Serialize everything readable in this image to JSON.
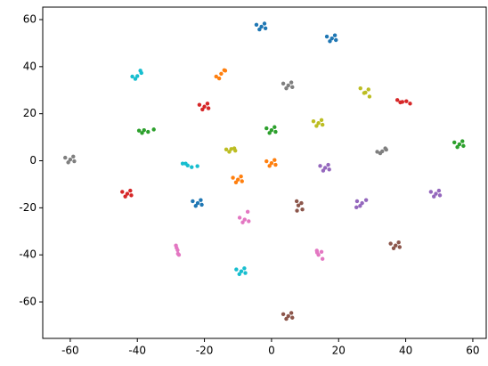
{
  "chart_data": {
    "type": "scatter",
    "xlim": [
      -68.2,
      64
    ],
    "ylim": [
      -75.5,
      65.3
    ],
    "xticks": [
      -60,
      -40,
      -20,
      0,
      20,
      40,
      60
    ],
    "yticks": [
      -60,
      -40,
      -20,
      0,
      20,
      40,
      60
    ],
    "series": [
      {
        "color": "#1f77b4",
        "x": [
          -4.5,
          -3,
          -1.8,
          -3.6,
          -2.1,
          16.5,
          18,
          19.2,
          17.4,
          18.9,
          -23.5,
          -22,
          -20.8,
          -22.6,
          -21.1
        ],
        "y": [
          57.8,
          57,
          56.3,
          55.8,
          58.3,
          52.8,
          52,
          51.3,
          50.8,
          53.3,
          -17.2,
          -18,
          -18.7,
          -19.2,
          -16.7
        ]
      },
      {
        "color": "#ff7f0e",
        "x": [
          -16.5,
          -15,
          -13.8,
          -15.6,
          -14.1,
          -1.5,
          0,
          1.2,
          -0.6,
          0.9,
          -11.5,
          -10,
          -8.8,
          -10.6,
          -9.1
        ],
        "y": [
          35.8,
          37,
          38.3,
          35,
          38.5,
          -0.2,
          -1,
          -1.7,
          -2.2,
          0.3,
          -7.2,
          -8,
          -8.7,
          -9.2,
          -6.7
        ]
      },
      {
        "color": "#2ca02c",
        "x": [
          -39.5,
          -38,
          -36.8,
          -38.6,
          -35.1,
          -1.5,
          0,
          1.2,
          -0.6,
          0.9,
          54.5,
          56,
          57.2,
          55.4,
          56.9
        ],
        "y": [
          12.8,
          13,
          12.3,
          11.8,
          13.3,
          13.8,
          13,
          12.3,
          11.8,
          14.3,
          7.8,
          7,
          6.3,
          5.8,
          8.3
        ]
      },
      {
        "color": "#d62728",
        "x": [
          -21.5,
          -20,
          -18.8,
          -20.6,
          -19.1,
          37.5,
          39,
          40.2,
          38.4,
          41.3,
          -44.5,
          -43,
          -41.8,
          -43.6,
          -42.1
        ],
        "y": [
          23.8,
          23,
          22.3,
          21.8,
          24.3,
          25.8,
          25,
          25.3,
          24.8,
          24.3,
          -13.2,
          -14,
          -14.7,
          -15.2,
          -12.7
        ]
      },
      {
        "color": "#9467bd",
        "x": [
          14.5,
          16,
          17.2,
          15.4,
          16.9,
          25.5,
          27,
          28.2,
          26.4,
          25.3,
          47.5,
          49,
          50.2,
          48.4,
          49.9
        ],
        "y": [
          -2.2,
          -3,
          -3.7,
          -4.2,
          -1.7,
          -17.2,
          -18,
          -16.7,
          -19.2,
          -19.8,
          -13.2,
          -14,
          -14.7,
          -15.2,
          -12.7
        ]
      },
      {
        "color": "#8c564b",
        "x": [
          7.5,
          8,
          9.2,
          7.6,
          8.9,
          35.5,
          37,
          38.2,
          36.4,
          37.9,
          3.5,
          5,
          6.2,
          4.4,
          5.9
        ],
        "y": [
          -17.2,
          -19,
          -20.7,
          -21.2,
          -18,
          -35.2,
          -36,
          -36.7,
          -37.2,
          -34.7,
          -65.2,
          -66,
          -66.7,
          -67.2,
          -64.7
        ]
      },
      {
        "color": "#e377c2",
        "x": [
          -9.5,
          -8,
          -6.8,
          -8.6,
          -7.1,
          -28.5,
          -28,
          -27.6,
          -28.3,
          -27.9,
          13.5,
          14,
          15.2,
          13.6,
          14.9
        ],
        "y": [
          -24.2,
          -25,
          -25.7,
          -26.2,
          -21.7,
          -36,
          -38,
          -40,
          -37,
          -39.5,
          -38.2,
          -40,
          -41.7,
          -39,
          -38.7
        ]
      },
      {
        "color": "#7f7f7f",
        "x": [
          -61.5,
          -60,
          -58.8,
          -60.6,
          -59.1,
          3.5,
          5,
          6.2,
          4.4,
          5.9,
          31.5,
          33,
          34.2,
          32.4,
          33.9
        ],
        "y": [
          1.3,
          0.5,
          -0.2,
          -0.7,
          1.8,
          32.8,
          32,
          31.3,
          30.8,
          33.3,
          3.8,
          4,
          4.7,
          3.2,
          5.3
        ]
      },
      {
        "color": "#bcbd22",
        "x": [
          26.5,
          28,
          29.2,
          27.6,
          28.9,
          12.5,
          14,
          15.2,
          13.4,
          14.9,
          -13.5,
          -12,
          -10.8,
          -12.6,
          -11.1
        ],
        "y": [
          30.8,
          29,
          27.3,
          28.8,
          30.3,
          16.8,
          16,
          15.3,
          14.8,
          17.3,
          4.8,
          5,
          4.3,
          3.8,
          5.3
        ]
      },
      {
        "color": "#17becf",
        "x": [
          -41.5,
          -40,
          -38.8,
          -40.6,
          -39.1,
          -26.5,
          -25,
          -23.8,
          -25.6,
          -22.1,
          -10.5,
          -9,
          -7.8,
          -9.6,
          -8.1
        ],
        "y": [
          35.8,
          36,
          37.3,
          34.8,
          38.3,
          -1.2,
          -2,
          -2.7,
          -1.2,
          -2.3,
          -46.2,
          -47,
          -47.7,
          -48.2,
          -45.7
        ]
      }
    ]
  }
}
